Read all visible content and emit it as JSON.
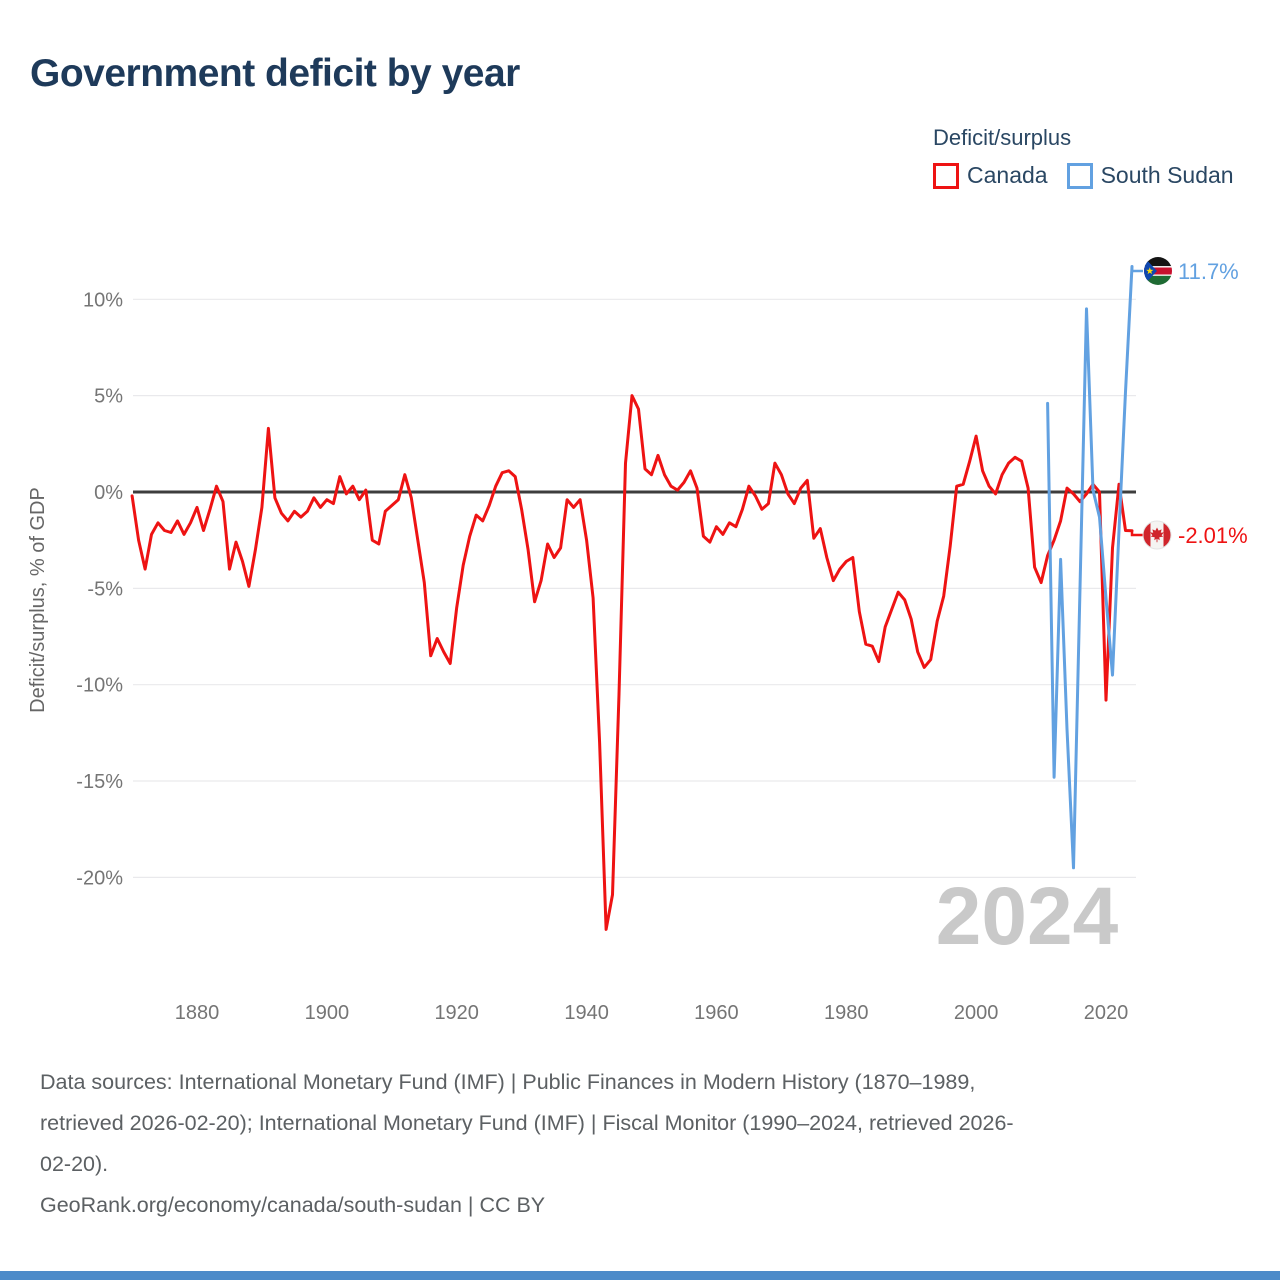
{
  "title": "Government deficit by year",
  "legend": {
    "title": "Deficit/surplus",
    "items": [
      {
        "label": "Canada",
        "color": "#ee1313"
      },
      {
        "label": "South Sudan",
        "color": "#62a1e1"
      }
    ]
  },
  "chart_data": {
    "type": "line",
    "title": "Government deficit by year",
    "xlabel": "",
    "ylabel": "Deficit/surplus, % of GDP",
    "xlim": [
      1869,
      2025
    ],
    "ylim": [
      -24,
      12
    ],
    "grid": true,
    "legend_position": "top-right",
    "watermark": "2024",
    "x_ticks": [
      1880,
      1900,
      1920,
      1940,
      1960,
      1980,
      2000,
      2020
    ],
    "y_ticks": [
      {
        "value": 10,
        "label": "10%"
      },
      {
        "value": 5,
        "label": "5%"
      },
      {
        "value": 0,
        "label": "0%"
      },
      {
        "value": -5,
        "label": "-5%"
      },
      {
        "value": -10,
        "label": "-10%"
      },
      {
        "value": -15,
        "label": "-15%"
      },
      {
        "value": -20,
        "label": "-20%"
      }
    ],
    "zero_line_color": "#3d3d3d",
    "gridline_color": "#e9e9ec",
    "series": [
      {
        "name": "Canada",
        "color": "#ee1313",
        "start_year": 1870,
        "end_year": 2024,
        "values": [
          -0.2,
          -2.5,
          -4.0,
          -2.2,
          -1.6,
          -2.0,
          -2.1,
          -1.5,
          -2.2,
          -1.6,
          -0.8,
          -2.0,
          -0.9,
          0.3,
          -0.5,
          -4.0,
          -2.6,
          -3.6,
          -4.9,
          -3.0,
          -0.8,
          3.3,
          -0.3,
          -1.1,
          -1.5,
          -1.0,
          -1.3,
          -1.0,
          -0.3,
          -0.8,
          -0.4,
          -0.6,
          0.8,
          -0.1,
          0.3,
          -0.4,
          0.1,
          -2.5,
          -2.7,
          -1.0,
          -0.7,
          -0.4,
          0.9,
          -0.3,
          -2.5,
          -4.7,
          -8.5,
          -7.6,
          -8.3,
          -8.9,
          -6.0,
          -3.8,
          -2.3,
          -1.2,
          -1.5,
          -0.7,
          0.3,
          1.0,
          1.1,
          0.8,
          -0.9,
          -3.0,
          -5.7,
          -4.6,
          -2.7,
          -3.4,
          -2.9,
          -0.4,
          -0.8,
          -0.4,
          -2.5,
          -5.5,
          -13.0,
          -22.7,
          -20.9,
          -10.5,
          1.5,
          5.0,
          4.3,
          1.2,
          0.9,
          1.9,
          0.9,
          0.3,
          0.1,
          0.5,
          1.1,
          0.2,
          -2.3,
          -2.6,
          -1.8,
          -2.2,
          -1.6,
          -1.8,
          -0.9,
          0.3,
          -0.2,
          -0.9,
          -0.6,
          1.5,
          0.9,
          -0.1,
          -0.6,
          0.2,
          0.6,
          -2.4,
          -1.9,
          -3.4,
          -4.6,
          -4.0,
          -3.6,
          -3.4,
          -6.2,
          -7.9,
          -8.0,
          -8.8,
          -7.0,
          -6.1,
          -5.2,
          -5.6,
          -6.6,
          -8.3,
          -9.1,
          -8.7,
          -6.7,
          -5.4,
          -2.8,
          0.3,
          0.4,
          1.6,
          2.9,
          1.1,
          0.3,
          -0.1,
          0.9,
          1.5,
          1.8,
          1.6,
          0.2,
          -3.9,
          -4.7,
          -3.3,
          -2.5,
          -1.5,
          0.2,
          -0.1,
          -0.5,
          -0.1,
          0.4,
          0.0,
          -10.8,
          -2.9,
          0.4,
          -2.0,
          -2.01
        ]
      },
      {
        "name": "South Sudan",
        "color": "#62a1e1",
        "start_year": 2011,
        "end_year": 2024,
        "values": [
          4.6,
          -14.8,
          -3.5,
          -12.3,
          -19.5,
          -5.0,
          9.5,
          0.1,
          -1.3,
          -5.5,
          -9.5,
          -2.0,
          5.2,
          11.7
        ]
      }
    ],
    "end_labels": [
      {
        "series": "South Sudan",
        "text": "11.7%",
        "color": "#62a1e1"
      },
      {
        "series": "Canada",
        "text": "-2.01%",
        "color": "#ee1313"
      }
    ]
  },
  "footer": {
    "lines": [
      "Data sources: International Monetary Fund (IMF) | Public Finances in Modern History (1870–1989,",
      "retrieved 2026-02-20); International Monetary Fund (IMF) | Fiscal Monitor (1990–2024, retrieved 2026-",
      "02-20)."
    ],
    "credit": "GeoRank.org/economy/canada/south-sudan | CC BY"
  },
  "accent_bar_color": "#4d8bc9"
}
